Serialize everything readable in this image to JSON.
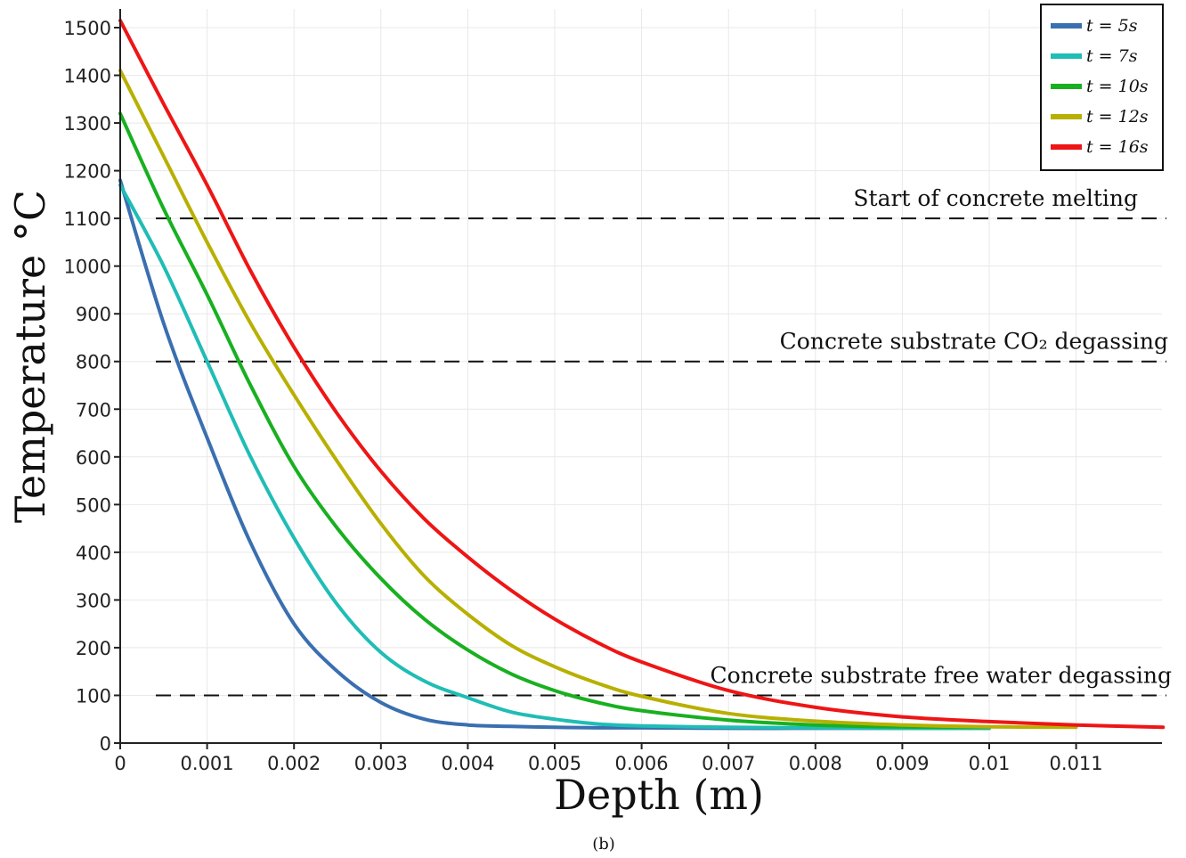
{
  "chart_data": {
    "type": "line",
    "xlabel": "Depth (m)",
    "ylabel": "Temperature °C",
    "caption": "(b)",
    "xlim": [
      0,
      0.012
    ],
    "ylim": [
      0,
      1550
    ],
    "x_ticks": [
      0,
      0.001,
      0.002,
      0.003,
      0.004,
      0.005,
      0.006,
      0.007,
      0.008,
      0.009,
      0.01,
      0.011
    ],
    "x_tick_labels": [
      "0",
      "0.001",
      "0.002",
      "0.003",
      "0.004",
      "0.005",
      "0.006",
      "0.007",
      "0.008",
      "0.009",
      "0.01",
      "0.011"
    ],
    "y_ticks": [
      0,
      100,
      200,
      300,
      400,
      500,
      600,
      700,
      800,
      900,
      1000,
      1100,
      1200,
      1300,
      1400,
      1500
    ],
    "grid": true,
    "legend_position": "top-right",
    "series": [
      {
        "name": "t = 5s",
        "color": "#3a6fb0",
        "x": [
          0,
          0.0005,
          0.001,
          0.0015,
          0.002,
          0.0025,
          0.003,
          0.0035,
          0.004,
          0.0045,
          0.005,
          0.0055,
          0.006,
          0.007,
          0.008,
          0.009,
          0.01
        ],
        "y": [
          1180,
          880,
          640,
          420,
          250,
          150,
          85,
          50,
          38,
          35,
          33,
          32,
          32,
          31,
          31,
          31,
          31
        ]
      },
      {
        "name": "t = 7s",
        "color": "#1fbdb5",
        "x": [
          0,
          0.0005,
          0.001,
          0.0015,
          0.002,
          0.0025,
          0.003,
          0.0035,
          0.004,
          0.0045,
          0.005,
          0.0055,
          0.006,
          0.007,
          0.008,
          0.009,
          0.01
        ],
        "y": [
          1170,
          1000,
          800,
          600,
          430,
          290,
          190,
          130,
          95,
          65,
          50,
          40,
          36,
          33,
          32,
          31,
          31
        ]
      },
      {
        "name": "t = 10s",
        "color": "#18b020",
        "x": [
          0,
          0.0005,
          0.001,
          0.0015,
          0.002,
          0.0025,
          0.003,
          0.0035,
          0.004,
          0.0045,
          0.005,
          0.0055,
          0.006,
          0.007,
          0.008,
          0.009,
          0.01
        ],
        "y": [
          1320,
          1120,
          940,
          750,
          580,
          450,
          345,
          260,
          195,
          145,
          110,
          85,
          68,
          48,
          38,
          34,
          33
        ]
      },
      {
        "name": "t = 12s",
        "color": "#b8b000",
        "x": [
          0,
          0.0005,
          0.001,
          0.0015,
          0.002,
          0.0025,
          0.003,
          0.0035,
          0.004,
          0.0045,
          0.005,
          0.0055,
          0.006,
          0.007,
          0.008,
          0.009,
          0.01,
          0.011
        ],
        "y": [
          1410,
          1230,
          1050,
          880,
          730,
          590,
          460,
          350,
          270,
          205,
          160,
          125,
          98,
          62,
          46,
          38,
          34,
          33
        ]
      },
      {
        "name": "t = 16s",
        "color": "#ee1515",
        "x": [
          0,
          0.0005,
          0.001,
          0.0015,
          0.002,
          0.0025,
          0.003,
          0.0035,
          0.004,
          0.0045,
          0.005,
          0.0055,
          0.006,
          0.007,
          0.008,
          0.009,
          0.01,
          0.011,
          0.012
        ],
        "y": [
          1515,
          1340,
          1170,
          990,
          830,
          690,
          570,
          470,
          390,
          320,
          260,
          210,
          170,
          110,
          75,
          55,
          45,
          38,
          33
        ]
      }
    ],
    "annotations": [
      {
        "text": "Start of concrete melting",
        "y": 1100
      },
      {
        "text": "Concrete substrate CO₂ degassing",
        "y": 800
      },
      {
        "text": "Concrete substrate free water degassing",
        "y": 100
      }
    ]
  }
}
